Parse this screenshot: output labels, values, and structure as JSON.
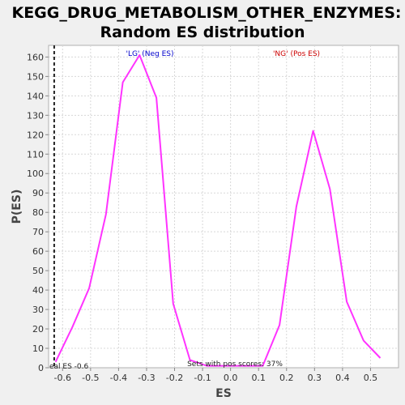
{
  "chart_data": {
    "type": "line",
    "title_lines": [
      "KEGG_DRUG_METABOLISM_OTHER_ENZYMES:",
      "Random ES distribution"
    ],
    "xlabel": "ES",
    "ylabel": "P(ES)",
    "xlim": [
      -0.65,
      0.6
    ],
    "ylim": [
      0,
      166
    ],
    "x_ticks": [
      -0.6,
      -0.5,
      -0.4,
      -0.3,
      -0.2,
      -0.1,
      0.0,
      0.1,
      0.2,
      0.3,
      0.4,
      0.5
    ],
    "x_tick_labels": [
      "-0.6",
      "-0.5",
      "-0.4",
      "-0.3",
      "-0.2",
      "-0.1",
      "0.0",
      "0.1",
      "0.2",
      "0.3",
      "0.4",
      "0.5"
    ],
    "y_ticks": [
      0,
      10,
      20,
      30,
      40,
      50,
      60,
      70,
      80,
      90,
      100,
      110,
      120,
      130,
      140,
      150,
      160
    ],
    "grid": true,
    "series": [
      {
        "color": "#ff33ff",
        "x": [
          -0.625,
          -0.565,
          -0.505,
          -0.445,
          -0.385,
          -0.325,
          -0.265,
          -0.205,
          -0.145,
          -0.085,
          0.115,
          0.175,
          0.235,
          0.295,
          0.355,
          0.415,
          0.475,
          0.535
        ],
        "y": [
          3,
          21,
          41,
          79,
          147,
          161,
          139,
          33,
          4,
          1,
          1,
          22,
          83,
          122,
          92,
          34,
          14,
          5
        ]
      }
    ],
    "real_es": {
      "value": -0.63,
      "label": "eal ES -0.6",
      "color": "#222222"
    },
    "annotations": [
      {
        "text": "'LG' (Neg ES)",
        "color": "#0000cc"
      },
      {
        "text": "'NG' (Pos ES)",
        "color": "#cc0000"
      },
      {
        "text": "Sets with pos scores: 37%",
        "color": "#222222"
      }
    ]
  }
}
